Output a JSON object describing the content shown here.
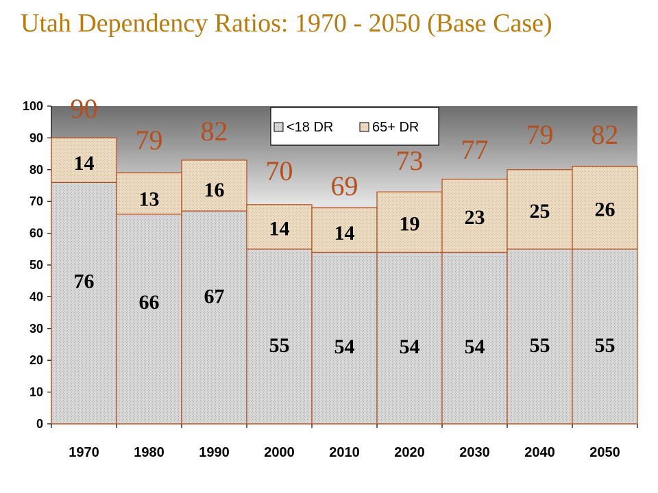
{
  "title": "Utah Dependency Ratios: 1970 - 2050 (Base Case)",
  "colors": {
    "title": "#b87b10",
    "bar_outline": "#b5501e",
    "under18_fill": "#d6d6d6",
    "over65_fill": "#ead9c0",
    "total_label": "#b5501e"
  },
  "chart_data": {
    "type": "bar",
    "stacked": true,
    "title": "Utah Dependency Ratios: 1970 - 2050 (Base Case)",
    "xlabel": "",
    "ylabel": "",
    "ylim": [
      0,
      100
    ],
    "yticks": [
      0,
      10,
      20,
      30,
      40,
      50,
      60,
      70,
      80,
      90,
      100
    ],
    "grid": false,
    "legend_position": "top-center",
    "categories": [
      "1970",
      "1980",
      "1990",
      "2000",
      "2010",
      "2020",
      "2030",
      "2040",
      "2050"
    ],
    "series": [
      {
        "name": "<18 DR",
        "values": [
          76,
          66,
          67,
          55,
          54,
          54,
          54,
          55,
          55
        ]
      },
      {
        "name": "65+ DR",
        "values": [
          14,
          13,
          16,
          14,
          14,
          19,
          23,
          25,
          26
        ]
      }
    ],
    "segment_labels": [
      [
        "76",
        "66",
        "67",
        "55",
        "54",
        "54",
        "54",
        "55",
        "55"
      ],
      [
        "14",
        "13",
        "16",
        "14",
        "14",
        "19",
        "23",
        "25",
        "26"
      ]
    ],
    "totals": [
      "90",
      "79",
      "82",
      "70",
      "69",
      "73",
      "77",
      "79",
      "82"
    ]
  }
}
